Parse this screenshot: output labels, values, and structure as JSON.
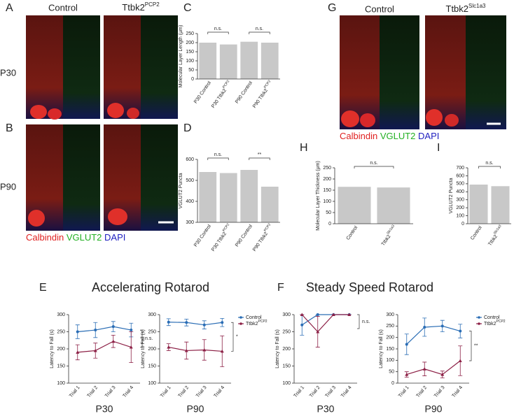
{
  "panels": [
    "A",
    "B",
    "C",
    "D",
    "E",
    "F",
    "G",
    "H",
    "I"
  ],
  "image_labels": {
    "ab_control": "Control",
    "ab_ttbk2": "Ttbk2",
    "ab_ttbk2_sup": "PCP2",
    "p30": "P30",
    "p90": "P90",
    "ab_calbindin": "Calbindin",
    "ab_vglut2": "VGLUT2",
    "ab_dapi": "DAPI",
    "g_control": "Control",
    "g_ttbk2": "Ttbk2",
    "g_ttbk2_sup": "Slc1a3",
    "g_calbindin": "Calbindin",
    "g_vglut2": "VGLUT2",
    "g_dapi": "DAPI"
  },
  "sections": [
    "Accelerating Rotarod",
    "Steady Speed Rotarod"
  ],
  "chart_data": [
    {
      "type": "bar",
      "ylabel": "Molecular Layer Length (μm)",
      "categories": [
        "P30 Control",
        "P30 Ttbk2",
        "P90 Control",
        "P90 Ttbk2"
      ],
      "category_superscripts": [
        null,
        "PCP2",
        null,
        "PCP2"
      ],
      "values": [
        200,
        190,
        205,
        200
      ],
      "color": "#c8c8c8",
      "ylim": [
        0,
        250
      ],
      "yticks": [
        0,
        50,
        100,
        150,
        200,
        250
      ],
      "annotations": [
        "n.s.",
        "n.s."
      ]
    },
    {
      "type": "bar",
      "ylabel": "VGLUT2 Puncta",
      "categories": [
        "P30 Control",
        "P30 Ttbk2",
        "P90 Control",
        "P90 Ttbk2"
      ],
      "category_superscripts": [
        null,
        "PCP2",
        null,
        "PCP2"
      ],
      "values": [
        540,
        535,
        550,
        470
      ],
      "color": "#c8c8c8",
      "ylim": [
        300,
        600
      ],
      "yticks": [
        300,
        400,
        500,
        600
      ],
      "annotations": [
        "n.s.",
        "**"
      ]
    },
    {
      "type": "bar",
      "ylabel": "Molecular Layer Thickness (μm)",
      "categories": [
        "Control",
        "Ttbk2"
      ],
      "category_superscripts": [
        null,
        "Slc1a3"
      ],
      "values": [
        165,
        162
      ],
      "color": "#c8c8c8",
      "ylim": [
        0,
        250
      ],
      "yticks": [
        0,
        50,
        100,
        150,
        200,
        250
      ],
      "annotations": [
        "n.s."
      ]
    },
    {
      "type": "bar",
      "ylabel": "VGLUT2 Puncta",
      "categories": [
        "Control",
        "Ttbk2"
      ],
      "category_superscripts": [
        null,
        "Slc1a3"
      ],
      "values": [
        490,
        470
      ],
      "color": "#c8c8c8",
      "ylim": [
        0,
        700
      ],
      "yticks": [
        0,
        100,
        200,
        300,
        400,
        500,
        600,
        700
      ],
      "annotations": [
        "n.s."
      ]
    },
    {
      "type": "line",
      "ylabel": "Latency to Fall (s)",
      "xlabel": "P30",
      "categories": [
        "Trial 1",
        "Trial 2",
        "Trial 3",
        "Trial 4"
      ],
      "ylim": [
        100,
        300
      ],
      "yticks": [
        100,
        150,
        200,
        250,
        300
      ],
      "annotation": "n.s.",
      "series": [
        {
          "color": "#2a6db5",
          "values": [
            250,
            255,
            265,
            255
          ],
          "errors": [
            20,
            22,
            15,
            20
          ]
        },
        {
          "color": "#8c1f45",
          "values": [
            190,
            195,
            222,
            205
          ],
          "errors": [
            22,
            22,
            18,
            45
          ]
        }
      ]
    },
    {
      "type": "line",
      "ylabel": "Latency to Fall (s)",
      "xlabel": "P90",
      "categories": [
        "Trial 1",
        "Trial 2",
        "Trial 3",
        "Trial 4"
      ],
      "ylim": [
        100,
        300
      ],
      "yticks": [
        100,
        150,
        200,
        250,
        300
      ],
      "annotation": "*",
      "series": [
        {
          "name": "Control",
          "color": "#2a6db5",
          "values": [
            278,
            277,
            270,
            277
          ],
          "errors": [
            10,
            10,
            12,
            12
          ]
        },
        {
          "name": "Ttbk2",
          "name_sup": "PCP2",
          "color": "#8c1f45",
          "values": [
            205,
            195,
            197,
            193
          ],
          "errors": [
            10,
            25,
            30,
            45
          ]
        }
      ]
    },
    {
      "type": "line",
      "ylabel": "Latency to Fall (s)",
      "xlabel": "P30",
      "categories": [
        "Trial 1",
        "Trial 2",
        "Trial 3",
        "Trial 4"
      ],
      "ylim": [
        100,
        300
      ],
      "yticks": [
        100,
        150,
        200,
        250,
        300
      ],
      "annotation": "n.s.",
      "series": [
        {
          "color": "#2a6db5",
          "values": [
            270,
            300,
            300,
            300
          ],
          "errors": [
            30,
            0,
            0,
            0
          ]
        },
        {
          "color": "#8c1f45",
          "values": [
            300,
            250,
            300,
            300
          ],
          "errors": [
            0,
            45,
            0,
            0
          ]
        }
      ]
    },
    {
      "type": "line",
      "ylabel": "Latency to Fall (s)",
      "xlabel": "P90",
      "categories": [
        "Trial 1",
        "Trial 2",
        "Trial 3",
        "Trial 4"
      ],
      "ylim": [
        0,
        300
      ],
      "yticks": [
        0,
        50,
        100,
        150,
        200,
        250,
        300
      ],
      "annotation": "**",
      "series": [
        {
          "name": "Control",
          "color": "#2a6db5",
          "values": [
            170,
            245,
            250,
            228
          ],
          "errors": [
            45,
            40,
            25,
            30
          ]
        },
        {
          "name": "Ttbk2",
          "name_sup": "PCP2",
          "color": "#8c1f45",
          "values": [
            38,
            62,
            38,
            98
          ],
          "errors": [
            12,
            30,
            15,
            65
          ]
        }
      ]
    }
  ]
}
